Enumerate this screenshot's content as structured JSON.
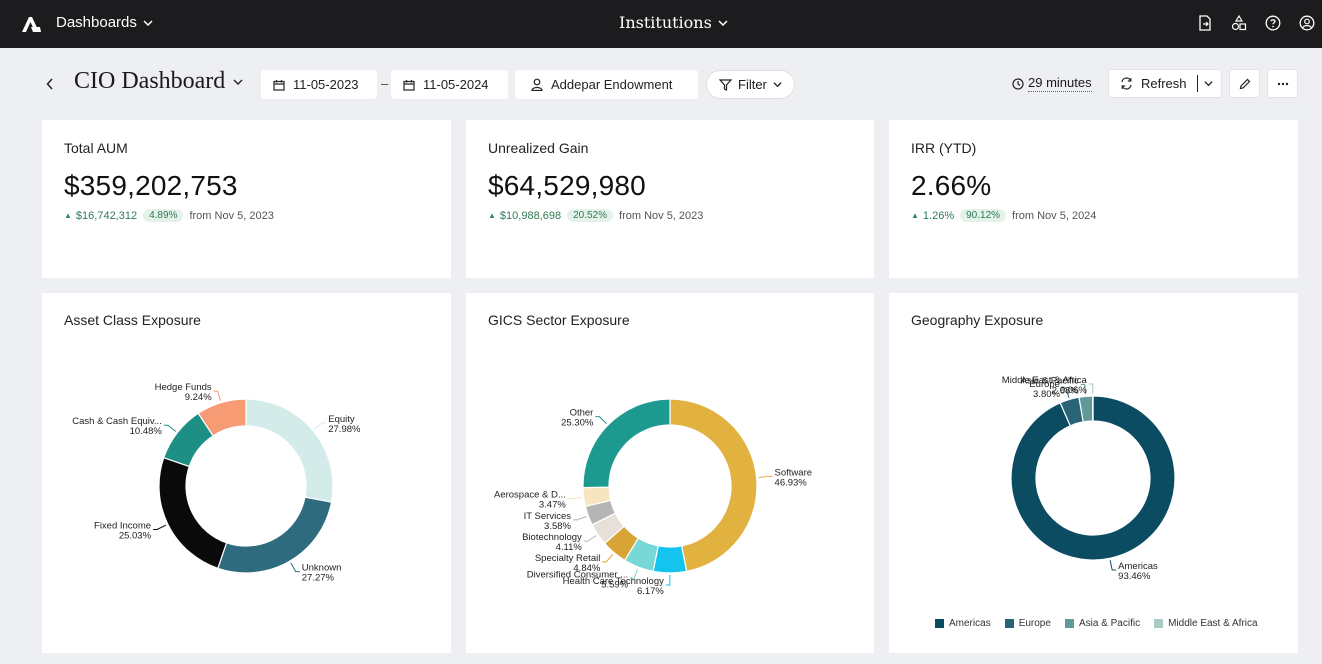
{
  "topbar": {
    "dashboards_label": "Dashboards",
    "workspace_label": "Institutions",
    "icons": [
      "export-icon",
      "shapes-icon",
      "help-icon",
      "account-icon"
    ]
  },
  "header": {
    "title": "CIO Dashboard",
    "start_date": "11-05-2023",
    "date_separator": "–",
    "end_date": "11-05-2024",
    "portfolio": "Addepar Endowment",
    "filter_label": "Filter",
    "refresh_age": "29 minutes",
    "refresh_label": "Refresh"
  },
  "kpis": [
    {
      "label": "Total AUM",
      "value": "$359,202,753",
      "delta": "$16,742,312",
      "pct": "4.89%",
      "since": "from Nov 5, 2023"
    },
    {
      "label": "Unrealized Gain",
      "value": "$64,529,980",
      "delta": "$10,988,698",
      "pct": "20.52%",
      "since": "from Nov 5, 2023"
    },
    {
      "label": "IRR (YTD)",
      "value": "2.66%",
      "delta": "1.26%",
      "pct": "90.12%",
      "since": "from Nov 5, 2024"
    }
  ],
  "chart_data": [
    {
      "type": "pie",
      "title": "Asset Class Exposure",
      "slices": [
        {
          "label": "Equity",
          "value": 27.98,
          "text": "27.98%",
          "color": "#d3ecea"
        },
        {
          "label": "Unknown",
          "value": 27.27,
          "text": "27.27%",
          "color": "#2e6b7e"
        },
        {
          "label": "Fixed Income",
          "value": 25.03,
          "text": "25.03%",
          "color": "#0a0a0a"
        },
        {
          "label": "Cash & Cash Equiv...",
          "value": 10.48,
          "text": "10.48%",
          "color": "#1e8f85"
        },
        {
          "label": "Hedge Funds",
          "value": 9.24,
          "text": "9.24%",
          "color": "#f79b74"
        }
      ]
    },
    {
      "type": "pie",
      "title": "GICS Sector Exposure",
      "slices": [
        {
          "label": "Software",
          "value": 46.93,
          "text": "46.93%",
          "color": "#e2b240"
        },
        {
          "label": "Health Care Technology",
          "value": 6.17,
          "text": "6.17%",
          "color": "#14c4ee"
        },
        {
          "label": "Diversified Consumer ...",
          "value": 5.59,
          "text": "5.59%",
          "color": "#78d8d8"
        },
        {
          "label": "Specialty Retail",
          "value": 4.84,
          "text": "4.84%",
          "color": "#d9a436"
        },
        {
          "label": "Biotechnology",
          "value": 4.11,
          "text": "4.11%",
          "color": "#e6e0d8"
        },
        {
          "label": "IT Services",
          "value": 3.58,
          "text": "3.58%",
          "color": "#b5b5b5"
        },
        {
          "label": "Aerospace & D...",
          "value": 3.47,
          "text": "3.47%",
          "color": "#f8e4be"
        },
        {
          "label": "Other",
          "value": 25.3,
          "text": "25.30%",
          "color": "#1c9a8f"
        }
      ]
    },
    {
      "type": "pie",
      "title": "Geography Exposure",
      "slices": [
        {
          "label": "Americas",
          "value": 93.46,
          "text": "93.46%",
          "color": "#0c4c63"
        },
        {
          "label": "Europe",
          "value": 3.8,
          "text": "3.80%",
          "color": "#2a6376"
        },
        {
          "label": "Asia & Pacific",
          "value": 2.68,
          "text": "2.68%",
          "color": "#5f9a98"
        },
        {
          "label": "Middle East & Africa",
          "value": 0.06,
          "text": "0.06%",
          "color": "#a8c9c4"
        }
      ],
      "legend": [
        "Americas",
        "Europe",
        "Asia & Pacific",
        "Middle East & Africa"
      ],
      "legend_placement": "bottom"
    }
  ]
}
